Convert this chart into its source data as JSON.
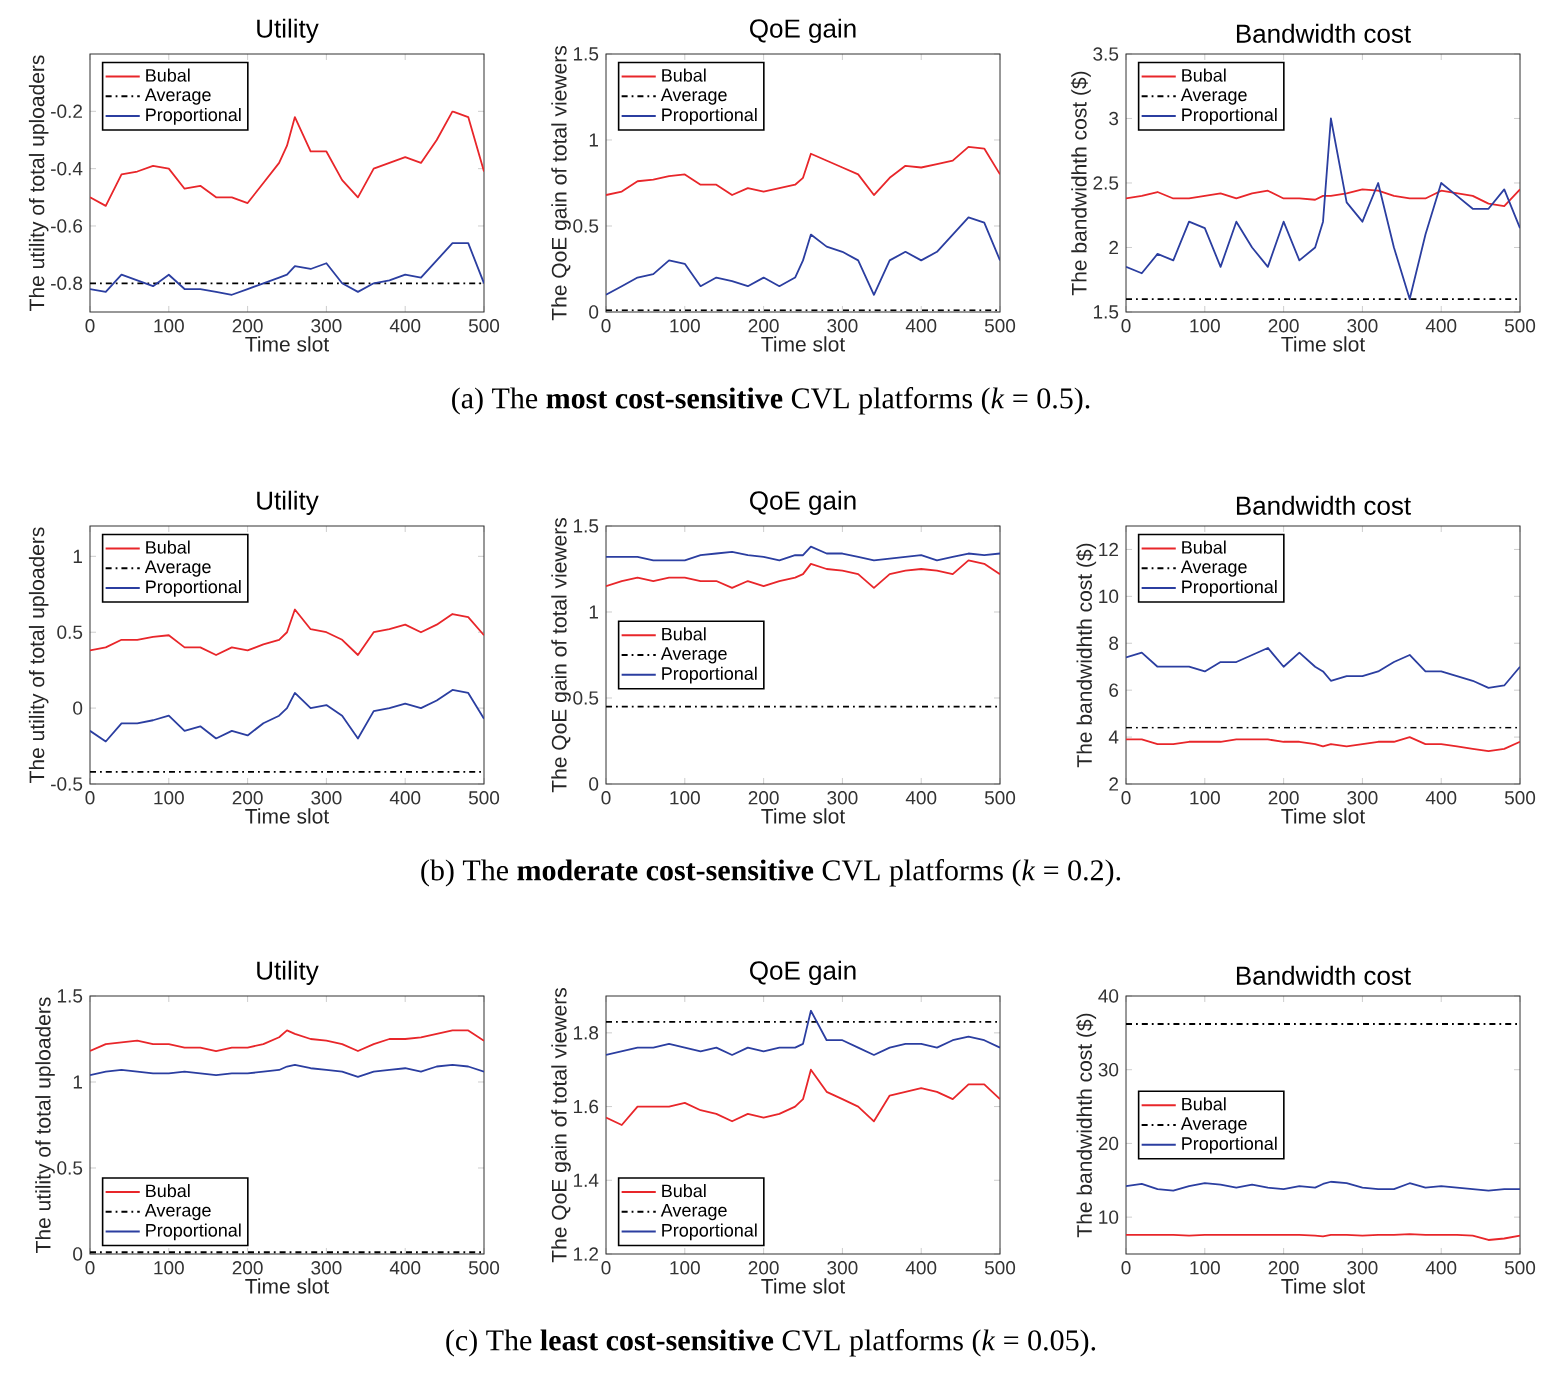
{
  "chart_data": [
    {
      "type": "line",
      "title": "Utility",
      "xlabel": "Time slot",
      "ylabel": "The utility of total uploaders",
      "legend": "top left",
      "xlim": [
        0,
        500
      ],
      "xticks": [
        0,
        100,
        200,
        300,
        400,
        500
      ],
      "ylim": [
        -0.9,
        0
      ],
      "yticks": [
        -0.8,
        -0.6,
        -0.4,
        -0.2
      ],
      "x": [
        0,
        20,
        40,
        60,
        80,
        100,
        120,
        140,
        160,
        180,
        200,
        220,
        240,
        250,
        260,
        280,
        300,
        320,
        340,
        360,
        380,
        400,
        420,
        440,
        460,
        480,
        500
      ],
      "series": [
        {
          "name": "Bubal",
          "color": "#e8262a",
          "line_style": "solid",
          "values": [
            -0.5,
            -0.53,
            -0.42,
            -0.41,
            -0.39,
            -0.4,
            -0.47,
            -0.46,
            -0.5,
            -0.5,
            -0.52,
            -0.45,
            -0.38,
            -0.32,
            -0.22,
            -0.34,
            -0.34,
            -0.44,
            -0.5,
            -0.4,
            -0.38,
            -0.36,
            -0.38,
            -0.3,
            -0.2,
            -0.22,
            -0.41
          ]
        },
        {
          "name": "Average",
          "color": "#000000",
          "line_style": "dashdot",
          "values": [
            -0.8,
            -0.8,
            -0.8,
            -0.8,
            -0.8,
            -0.8,
            -0.8,
            -0.8,
            -0.8,
            -0.8,
            -0.8,
            -0.8,
            -0.8,
            -0.8,
            -0.8,
            -0.8,
            -0.8,
            -0.8,
            -0.8,
            -0.8,
            -0.8,
            -0.8,
            -0.8,
            -0.8,
            -0.8,
            -0.8,
            -0.8
          ]
        },
        {
          "name": "Proportional",
          "color": "#2b3ea0",
          "line_style": "solid",
          "values": [
            -0.82,
            -0.83,
            -0.77,
            -0.79,
            -0.81,
            -0.77,
            -0.82,
            -0.82,
            -0.83,
            -0.84,
            -0.82,
            -0.8,
            -0.78,
            -0.77,
            -0.74,
            -0.75,
            -0.73,
            -0.8,
            -0.83,
            -0.8,
            -0.79,
            -0.77,
            -0.78,
            -0.72,
            -0.66,
            -0.66,
            -0.8
          ]
        }
      ]
    },
    {
      "type": "line",
      "title": "QoE gain",
      "xlabel": "Time slot",
      "ylabel": "The QoE gain of total viewers",
      "legend": "top left",
      "xlim": [
        0,
        500
      ],
      "xticks": [
        0,
        100,
        200,
        300,
        400,
        500
      ],
      "ylim": [
        0,
        1.5
      ],
      "yticks": [
        0,
        0.5,
        1,
        1.5
      ],
      "annotations": [
        "(a) The **most cost-sensitive** CVL platforms (*k* = 0.5)."
      ],
      "x": [
        0,
        20,
        40,
        60,
        80,
        100,
        120,
        140,
        160,
        180,
        200,
        220,
        240,
        250,
        260,
        280,
        300,
        320,
        340,
        360,
        380,
        400,
        420,
        440,
        460,
        480,
        500
      ],
      "series": [
        {
          "name": "Bubal",
          "color": "#e8262a",
          "line_style": "solid",
          "values": [
            0.68,
            0.7,
            0.76,
            0.77,
            0.79,
            0.8,
            0.74,
            0.74,
            0.68,
            0.72,
            0.7,
            0.72,
            0.74,
            0.78,
            0.92,
            0.88,
            0.84,
            0.8,
            0.68,
            0.78,
            0.85,
            0.84,
            0.86,
            0.88,
            0.96,
            0.95,
            0.8
          ]
        },
        {
          "name": "Average",
          "color": "#000000",
          "line_style": "dashdot",
          "values": [
            0.01,
            0.01,
            0.01,
            0.01,
            0.01,
            0.01,
            0.01,
            0.01,
            0.01,
            0.01,
            0.01,
            0.01,
            0.01,
            0.01,
            0.01,
            0.01,
            0.01,
            0.01,
            0.01,
            0.01,
            0.01,
            0.01,
            0.01,
            0.01,
            0.01,
            0.01,
            0.01
          ]
        },
        {
          "name": "Proportional",
          "color": "#2b3ea0",
          "line_style": "solid",
          "values": [
            0.1,
            0.15,
            0.2,
            0.22,
            0.3,
            0.28,
            0.15,
            0.2,
            0.18,
            0.15,
            0.2,
            0.15,
            0.2,
            0.3,
            0.45,
            0.38,
            0.35,
            0.3,
            0.1,
            0.3,
            0.35,
            0.3,
            0.35,
            0.45,
            0.55,
            0.52,
            0.3
          ]
        }
      ]
    },
    {
      "type": "line",
      "title": "Bandwidth cost",
      "xlabel": "Time slot",
      "ylabel": "The bandwidhth cost ($)",
      "legend": "top left",
      "xlim": [
        0,
        500
      ],
      "xticks": [
        0,
        100,
        200,
        300,
        400,
        500
      ],
      "ylim": [
        1.5,
        3.5
      ],
      "yticks": [
        1.5,
        2,
        2.5,
        3,
        3.5
      ],
      "x": [
        0,
        20,
        40,
        60,
        80,
        100,
        120,
        140,
        160,
        180,
        200,
        220,
        240,
        250,
        260,
        280,
        300,
        320,
        340,
        360,
        380,
        400,
        420,
        440,
        460,
        480,
        500
      ],
      "series": [
        {
          "name": "Bubal",
          "color": "#e8262a",
          "line_style": "solid",
          "values": [
            2.38,
            2.4,
            2.43,
            2.38,
            2.38,
            2.4,
            2.42,
            2.38,
            2.42,
            2.44,
            2.38,
            2.38,
            2.37,
            2.4,
            2.4,
            2.42,
            2.45,
            2.44,
            2.4,
            2.38,
            2.38,
            2.44,
            2.42,
            2.4,
            2.34,
            2.32,
            2.45
          ]
        },
        {
          "name": "Average",
          "color": "#000000",
          "line_style": "dashdot",
          "values": [
            1.6,
            1.6,
            1.6,
            1.6,
            1.6,
            1.6,
            1.6,
            1.6,
            1.6,
            1.6,
            1.6,
            1.6,
            1.6,
            1.6,
            1.6,
            1.6,
            1.6,
            1.6,
            1.6,
            1.6,
            1.6,
            1.6,
            1.6,
            1.6,
            1.6,
            1.6,
            1.6
          ]
        },
        {
          "name": "Proportional",
          "color": "#2b3ea0",
          "line_style": "solid",
          "values": [
            1.85,
            1.8,
            1.95,
            1.9,
            2.2,
            2.15,
            1.85,
            2.2,
            2.0,
            1.85,
            2.2,
            1.9,
            2.0,
            2.2,
            3.0,
            2.35,
            2.2,
            2.5,
            2.0,
            1.6,
            2.1,
            2.5,
            2.4,
            2.3,
            2.3,
            2.45,
            2.15
          ]
        }
      ]
    },
    {
      "type": "line",
      "title": "Utility",
      "xlabel": "Time slot",
      "ylabel": "The utility of total uploaders",
      "legend": "top left",
      "xlim": [
        0,
        500
      ],
      "xticks": [
        0,
        100,
        200,
        300,
        400,
        500
      ],
      "ylim": [
        -0.5,
        1.2
      ],
      "yticks": [
        -0.5,
        0,
        0.5,
        1
      ],
      "x": [
        0,
        20,
        40,
        60,
        80,
        100,
        120,
        140,
        160,
        180,
        200,
        220,
        240,
        250,
        260,
        280,
        300,
        320,
        340,
        360,
        380,
        400,
        420,
        440,
        460,
        480,
        500
      ],
      "series": [
        {
          "name": "Bubal",
          "color": "#e8262a",
          "line_style": "solid",
          "values": [
            0.38,
            0.4,
            0.45,
            0.45,
            0.47,
            0.48,
            0.4,
            0.4,
            0.35,
            0.4,
            0.38,
            0.42,
            0.45,
            0.5,
            0.65,
            0.52,
            0.5,
            0.45,
            0.35,
            0.5,
            0.52,
            0.55,
            0.5,
            0.55,
            0.62,
            0.6,
            0.48
          ]
        },
        {
          "name": "Average",
          "color": "#000000",
          "line_style": "dashdot",
          "values": [
            -0.42,
            -0.42,
            -0.42,
            -0.42,
            -0.42,
            -0.42,
            -0.42,
            -0.42,
            -0.42,
            -0.42,
            -0.42,
            -0.42,
            -0.42,
            -0.42,
            -0.42,
            -0.42,
            -0.42,
            -0.42,
            -0.42,
            -0.42,
            -0.42,
            -0.42,
            -0.42,
            -0.42,
            -0.42,
            -0.42,
            -0.42
          ]
        },
        {
          "name": "Proportional",
          "color": "#2b3ea0",
          "line_style": "solid",
          "values": [
            -0.15,
            -0.22,
            -0.1,
            -0.1,
            -0.08,
            -0.05,
            -0.15,
            -0.12,
            -0.2,
            -0.15,
            -0.18,
            -0.1,
            -0.05,
            0.0,
            0.1,
            0.0,
            0.02,
            -0.05,
            -0.2,
            -0.02,
            0.0,
            0.03,
            0.0,
            0.05,
            0.12,
            0.1,
            -0.07
          ]
        }
      ]
    },
    {
      "type": "line",
      "title": "QoE gain",
      "xlabel": "Time slot",
      "ylabel": "The QoE gain of total viewers",
      "legend": "left",
      "xlim": [
        0,
        500
      ],
      "xticks": [
        0,
        100,
        200,
        300,
        400,
        500
      ],
      "ylim": [
        0,
        1.5
      ],
      "yticks": [
        0,
        0.5,
        1,
        1.5
      ],
      "annotations": [
        "(b) The **moderate cost-sensitive** CVL platforms (*k* = 0.2)."
      ],
      "x": [
        0,
        20,
        40,
        60,
        80,
        100,
        120,
        140,
        160,
        180,
        200,
        220,
        240,
        250,
        260,
        280,
        300,
        320,
        340,
        360,
        380,
        400,
        420,
        440,
        460,
        480,
        500
      ],
      "series": [
        {
          "name": "Bubal",
          "color": "#e8262a",
          "line_style": "solid",
          "values": [
            1.15,
            1.18,
            1.2,
            1.18,
            1.2,
            1.2,
            1.18,
            1.18,
            1.14,
            1.18,
            1.15,
            1.18,
            1.2,
            1.22,
            1.28,
            1.25,
            1.24,
            1.22,
            1.14,
            1.22,
            1.24,
            1.25,
            1.24,
            1.22,
            1.3,
            1.28,
            1.22
          ]
        },
        {
          "name": "Average",
          "color": "#000000",
          "line_style": "dashdot",
          "values": [
            0.45,
            0.45,
            0.45,
            0.45,
            0.45,
            0.45,
            0.45,
            0.45,
            0.45,
            0.45,
            0.45,
            0.45,
            0.45,
            0.45,
            0.45,
            0.45,
            0.45,
            0.45,
            0.45,
            0.45,
            0.45,
            0.45,
            0.45,
            0.45,
            0.45,
            0.45,
            0.45
          ]
        },
        {
          "name": "Proportional",
          "color": "#2b3ea0",
          "line_style": "solid",
          "values": [
            1.32,
            1.32,
            1.32,
            1.3,
            1.3,
            1.3,
            1.33,
            1.34,
            1.35,
            1.33,
            1.32,
            1.3,
            1.33,
            1.33,
            1.38,
            1.34,
            1.34,
            1.32,
            1.3,
            1.31,
            1.32,
            1.33,
            1.3,
            1.32,
            1.34,
            1.33,
            1.34
          ]
        }
      ]
    },
    {
      "type": "line",
      "title": "Bandwidth cost",
      "xlabel": "Time slot",
      "ylabel": "The bandwidhth cost ($)",
      "legend": "top left",
      "xlim": [
        0,
        500
      ],
      "xticks": [
        0,
        100,
        200,
        300,
        400,
        500
      ],
      "ylim": [
        2,
        13
      ],
      "yticks": [
        2,
        4,
        6,
        8,
        10,
        12
      ],
      "x": [
        0,
        20,
        40,
        60,
        80,
        100,
        120,
        140,
        160,
        180,
        200,
        220,
        240,
        250,
        260,
        280,
        300,
        320,
        340,
        360,
        380,
        400,
        420,
        440,
        460,
        480,
        500
      ],
      "series": [
        {
          "name": "Bubal",
          "color": "#e8262a",
          "line_style": "solid",
          "values": [
            3.9,
            3.9,
            3.7,
            3.7,
            3.8,
            3.8,
            3.8,
            3.9,
            3.9,
            3.9,
            3.8,
            3.8,
            3.7,
            3.6,
            3.7,
            3.6,
            3.7,
            3.8,
            3.8,
            4.0,
            3.7,
            3.7,
            3.6,
            3.5,
            3.4,
            3.5,
            3.8
          ]
        },
        {
          "name": "Average",
          "color": "#000000",
          "line_style": "dashdot",
          "values": [
            4.4,
            4.4,
            4.4,
            4.4,
            4.4,
            4.4,
            4.4,
            4.4,
            4.4,
            4.4,
            4.4,
            4.4,
            4.4,
            4.4,
            4.4,
            4.4,
            4.4,
            4.4,
            4.4,
            4.4,
            4.4,
            4.4,
            4.4,
            4.4,
            4.4,
            4.4,
            4.4
          ]
        },
        {
          "name": "Proportional",
          "color": "#2b3ea0",
          "line_style": "solid",
          "values": [
            7.4,
            7.6,
            7.0,
            7.0,
            7.0,
            6.8,
            7.2,
            7.2,
            7.5,
            7.8,
            7.0,
            7.6,
            7.0,
            6.8,
            6.4,
            6.6,
            6.6,
            6.8,
            7.2,
            7.5,
            6.8,
            6.8,
            6.6,
            6.4,
            6.1,
            6.2,
            7.0
          ]
        }
      ]
    },
    {
      "type": "line",
      "title": "Utility",
      "xlabel": "Time slot",
      "ylabel": "The utility of total uploaders",
      "legend": "bottom left",
      "xlim": [
        0,
        500
      ],
      "xticks": [
        0,
        100,
        200,
        300,
        400,
        500
      ],
      "ylim": [
        0,
        1.5
      ],
      "yticks": [
        0,
        0.5,
        1,
        1.5
      ],
      "x": [
        0,
        20,
        40,
        60,
        80,
        100,
        120,
        140,
        160,
        180,
        200,
        220,
        240,
        250,
        260,
        280,
        300,
        320,
        340,
        360,
        380,
        400,
        420,
        440,
        460,
        480,
        500
      ],
      "series": [
        {
          "name": "Bubal",
          "color": "#e8262a",
          "line_style": "solid",
          "values": [
            1.18,
            1.22,
            1.23,
            1.24,
            1.22,
            1.22,
            1.2,
            1.2,
            1.18,
            1.2,
            1.2,
            1.22,
            1.26,
            1.3,
            1.28,
            1.25,
            1.24,
            1.22,
            1.18,
            1.22,
            1.25,
            1.25,
            1.26,
            1.28,
            1.3,
            1.3,
            1.24
          ]
        },
        {
          "name": "Average",
          "color": "#000000",
          "line_style": "dashdot",
          "values": [
            0.01,
            0.01,
            0.01,
            0.01,
            0.01,
            0.01,
            0.01,
            0.01,
            0.01,
            0.01,
            0.01,
            0.01,
            0.01,
            0.01,
            0.01,
            0.01,
            0.01,
            0.01,
            0.01,
            0.01,
            0.01,
            0.01,
            0.01,
            0.01,
            0.01,
            0.01,
            0.01
          ]
        },
        {
          "name": "Proportional",
          "color": "#2b3ea0",
          "line_style": "solid",
          "values": [
            1.04,
            1.06,
            1.07,
            1.06,
            1.05,
            1.05,
            1.06,
            1.05,
            1.04,
            1.05,
            1.05,
            1.06,
            1.07,
            1.09,
            1.1,
            1.08,
            1.07,
            1.06,
            1.03,
            1.06,
            1.07,
            1.08,
            1.06,
            1.09,
            1.1,
            1.09,
            1.06
          ]
        }
      ]
    },
    {
      "type": "line",
      "title": "QoE gain",
      "xlabel": "Time slot",
      "ylabel": "The QoE gain of total viewers",
      "legend": "bottom left",
      "xlim": [
        0,
        500
      ],
      "xticks": [
        0,
        100,
        200,
        300,
        400,
        500
      ],
      "ylim": [
        1.2,
        1.9
      ],
      "yticks": [
        1.2,
        1.4,
        1.6,
        1.8
      ],
      "annotations": [
        "(c) The **least cost-sensitive** CVL platforms (*k* = 0.05)."
      ],
      "x": [
        0,
        20,
        40,
        60,
        80,
        100,
        120,
        140,
        160,
        180,
        200,
        220,
        240,
        250,
        260,
        280,
        300,
        320,
        340,
        360,
        380,
        400,
        420,
        440,
        460,
        480,
        500
      ],
      "series": [
        {
          "name": "Bubal",
          "color": "#e8262a",
          "line_style": "solid",
          "values": [
            1.57,
            1.55,
            1.6,
            1.6,
            1.6,
            1.61,
            1.59,
            1.58,
            1.56,
            1.58,
            1.57,
            1.58,
            1.6,
            1.62,
            1.7,
            1.64,
            1.62,
            1.6,
            1.56,
            1.63,
            1.64,
            1.65,
            1.64,
            1.62,
            1.66,
            1.66,
            1.62
          ]
        },
        {
          "name": "Average",
          "color": "#000000",
          "line_style": "dashdot",
          "values": [
            1.83,
            1.83,
            1.83,
            1.83,
            1.83,
            1.83,
            1.83,
            1.83,
            1.83,
            1.83,
            1.83,
            1.83,
            1.83,
            1.83,
            1.83,
            1.83,
            1.83,
            1.83,
            1.83,
            1.83,
            1.83,
            1.83,
            1.83,
            1.83,
            1.83,
            1.83,
            1.83
          ]
        },
        {
          "name": "Proportional",
          "color": "#2b3ea0",
          "line_style": "solid",
          "values": [
            1.74,
            1.75,
            1.76,
            1.76,
            1.77,
            1.76,
            1.75,
            1.76,
            1.74,
            1.76,
            1.75,
            1.76,
            1.76,
            1.77,
            1.86,
            1.78,
            1.78,
            1.76,
            1.74,
            1.76,
            1.77,
            1.77,
            1.76,
            1.78,
            1.79,
            1.78,
            1.76
          ]
        }
      ]
    },
    {
      "type": "line",
      "title": "Bandwidth cost",
      "xlabel": "Time slot",
      "ylabel": "The bandwidhth cost ($)",
      "legend": "left",
      "xlim": [
        0,
        500
      ],
      "xticks": [
        0,
        100,
        200,
        300,
        400,
        500
      ],
      "ylim": [
        5,
        40
      ],
      "yticks": [
        10,
        20,
        30,
        40
      ],
      "x": [
        0,
        20,
        40,
        60,
        80,
        100,
        120,
        140,
        160,
        180,
        200,
        220,
        240,
        250,
        260,
        280,
        300,
        320,
        340,
        360,
        380,
        400,
        420,
        440,
        460,
        480,
        500
      ],
      "series": [
        {
          "name": "Bubal",
          "color": "#e8262a",
          "line_style": "solid",
          "values": [
            7.6,
            7.6,
            7.6,
            7.6,
            7.5,
            7.6,
            7.6,
            7.6,
            7.6,
            7.6,
            7.6,
            7.6,
            7.5,
            7.4,
            7.6,
            7.6,
            7.5,
            7.6,
            7.6,
            7.7,
            7.6,
            7.6,
            7.6,
            7.5,
            6.9,
            7.1,
            7.5
          ]
        },
        {
          "name": "Average",
          "color": "#000000",
          "line_style": "dashdot",
          "values": [
            36.2,
            36.2,
            36.2,
            36.2,
            36.2,
            36.2,
            36.2,
            36.2,
            36.2,
            36.2,
            36.2,
            36.2,
            36.2,
            36.2,
            36.2,
            36.2,
            36.2,
            36.2,
            36.2,
            36.2,
            36.2,
            36.2,
            36.2,
            36.2,
            36.2,
            36.2,
            36.2
          ]
        },
        {
          "name": "Proportional",
          "color": "#2b3ea0",
          "line_style": "solid",
          "values": [
            14.2,
            14.5,
            13.8,
            13.6,
            14.2,
            14.6,
            14.4,
            14.0,
            14.4,
            14.0,
            13.8,
            14.2,
            14.0,
            14.5,
            14.8,
            14.6,
            14.0,
            13.8,
            13.8,
            14.6,
            14.0,
            14.2,
            14.0,
            13.8,
            13.6,
            13.8,
            13.8
          ]
        }
      ]
    }
  ]
}
